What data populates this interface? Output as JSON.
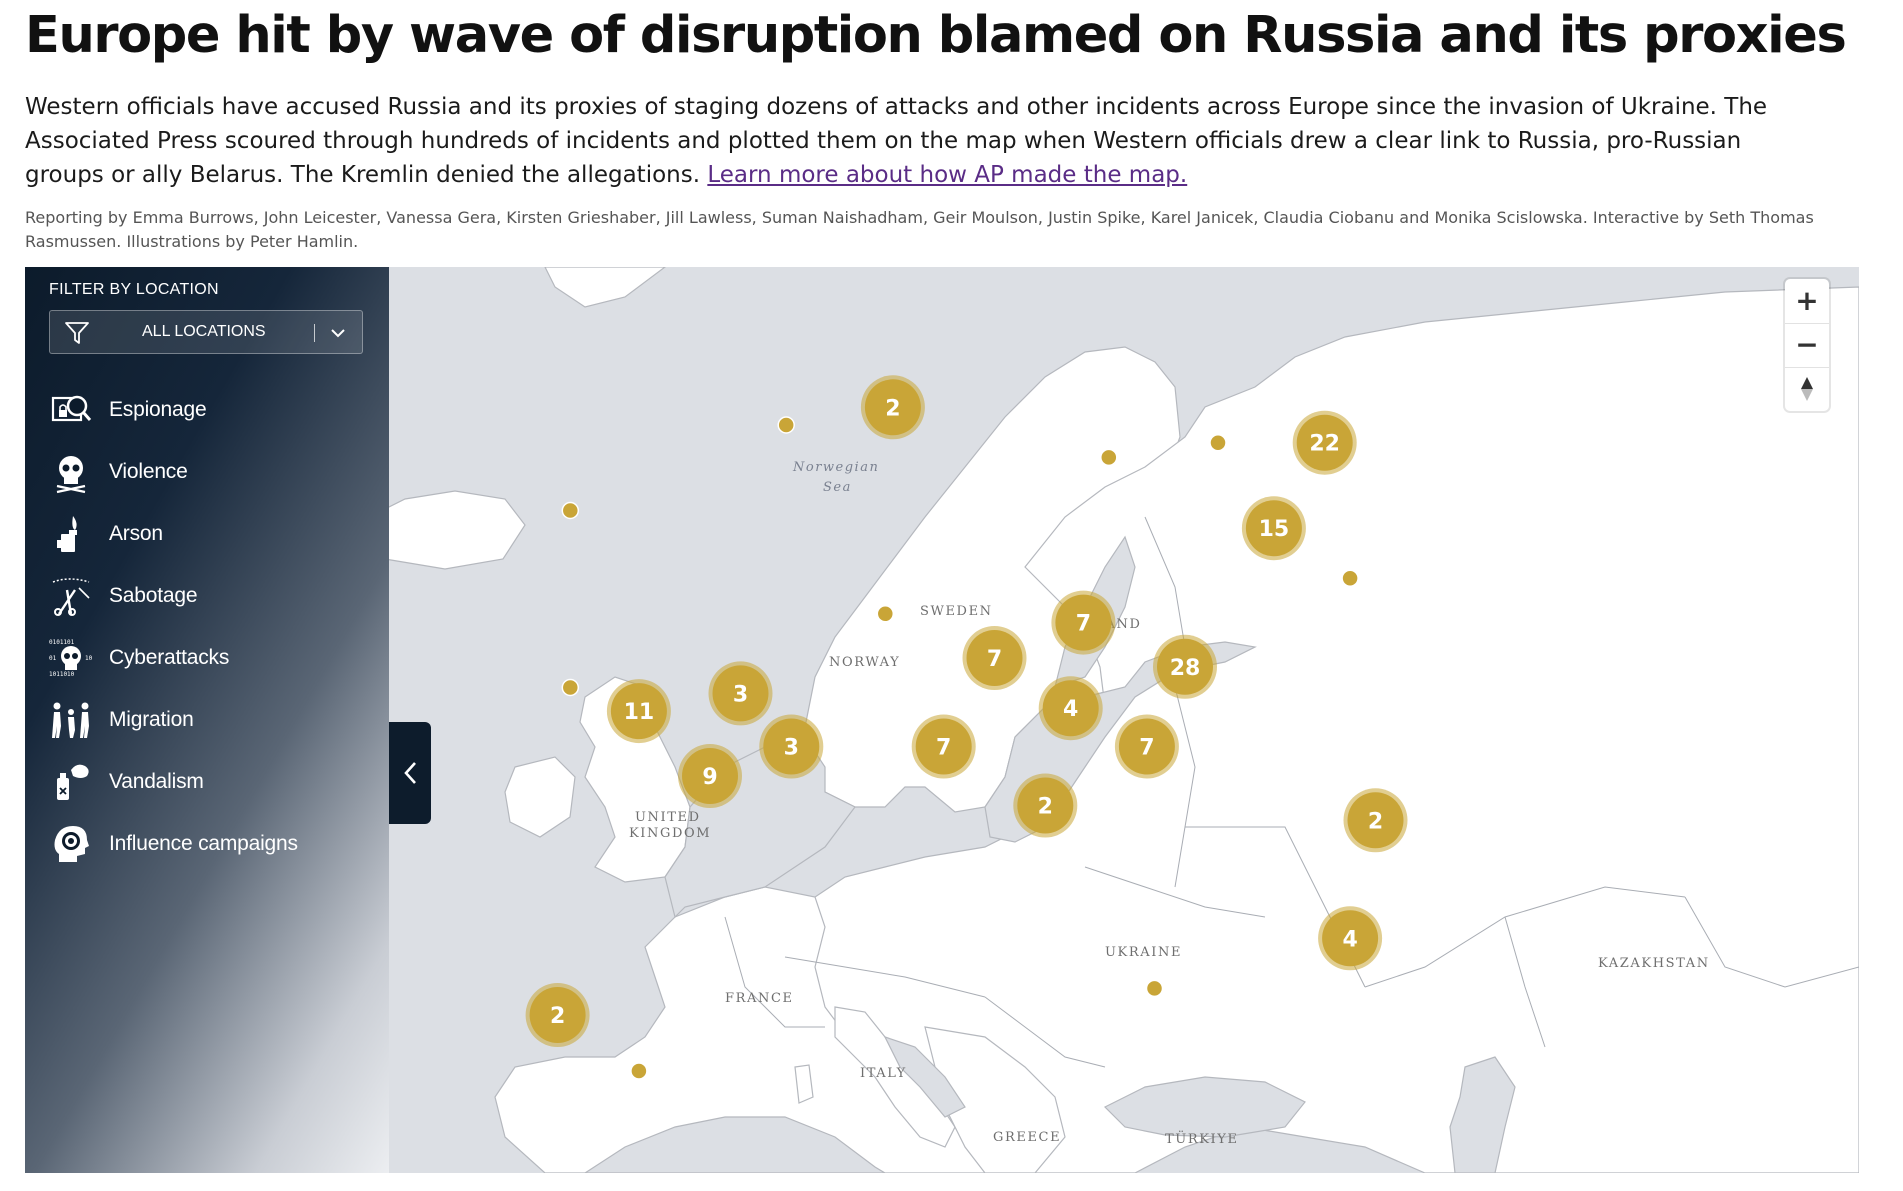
{
  "article": {
    "headline": "Europe hit by wave of disruption blamed on Russia and its proxies",
    "dek": "Western officials have accused Russia and its proxies of staging dozens of attacks and other incidents across Europe since the invasion of Ukraine. The Associated Press scoured through hundreds of incidents and plotted them on the map when Western officials drew a clear link to Russia, pro-Russian groups or ally Belarus. The Kremlin denied the allegations.",
    "dek_link": "Learn more about how AP made the map.",
    "credits": "Reporting by Emma Burrows, John Leicester, Vanessa Gera, Kirsten Grieshaber, Jill Lawless, Suman Naishadham, Geir Moulson, Justin Spike, Karel Janicek, Claudia Ciobanu and Monika Scislowska. Interactive by Seth Thomas Rasmussen. Illustrations by Peter Hamlin."
  },
  "sidebar": {
    "filter_title": "FILTER BY LOCATION",
    "filter_value": "ALL LOCATIONS",
    "categories": [
      {
        "label": "Espionage",
        "icon": "espionage-icon"
      },
      {
        "label": "Violence",
        "icon": "skull-icon"
      },
      {
        "label": "Arson",
        "icon": "lighter-flame-icon"
      },
      {
        "label": "Sabotage",
        "icon": "wire-cutter-icon"
      },
      {
        "label": "Cyberattacks",
        "icon": "binary-skull-icon"
      },
      {
        "label": "Migration",
        "icon": "people-walking-icon"
      },
      {
        "label": "Vandalism",
        "icon": "spray-can-icon"
      },
      {
        "label": "Influence campaigns",
        "icon": "head-target-icon"
      }
    ]
  },
  "map": {
    "labels": {
      "sea": [
        "Norwegian",
        "Sea"
      ],
      "sweden": "SWEDEN",
      "finland": "FINLAND",
      "norway": "NORWAY",
      "uk": [
        "UNITED",
        "KINGDOM"
      ],
      "france": "FRANCE",
      "ukraine": "UKRAINE",
      "italy": "ITALY",
      "greece": "GREECE",
      "turkiye": "TÜRKIYE",
      "kazakhstan": "KAZAKHSTAN"
    },
    "clusters": [
      {
        "count": "2",
        "lon": 9.5,
        "lat": 61.0
      },
      {
        "count": "22",
        "lon": 26.5,
        "lat": 59.8
      },
      {
        "count": "15",
        "lon": 24.5,
        "lat": 56.9
      },
      {
        "count": "7",
        "lon": 17.0,
        "lat": 53.7
      },
      {
        "count": "28",
        "lon": 21.0,
        "lat": 52.2
      },
      {
        "count": "7",
        "lon": 13.5,
        "lat": 52.5
      },
      {
        "count": "4",
        "lon": 16.5,
        "lat": 50.8
      },
      {
        "count": "3",
        "lon": 3.5,
        "lat": 51.3
      },
      {
        "count": "3",
        "lon": 5.5,
        "lat": 49.5
      },
      {
        "count": "11",
        "lon": -0.5,
        "lat": 50.7
      },
      {
        "count": "7",
        "lon": 19.5,
        "lat": 49.5
      },
      {
        "count": "7",
        "lon": 11.5,
        "lat": 49.5
      },
      {
        "count": "9",
        "lon": 2.3,
        "lat": 48.5
      },
      {
        "count": "2",
        "lon": 15.5,
        "lat": 47.5
      },
      {
        "count": "2",
        "lon": 28.5,
        "lat": 47.0
      },
      {
        "count": "4",
        "lon": 27.5,
        "lat": 43.0
      },
      {
        "count": "2",
        "lon": -3.7,
        "lat": 40.4
      }
    ],
    "points": [
      {
        "lon": -21.9,
        "lat": 64.1
      },
      {
        "lon": 5.3,
        "lat": 60.4
      },
      {
        "lon": -3.2,
        "lat": 57.5
      },
      {
        "lon": 18.0,
        "lat": 59.3
      },
      {
        "lon": 22.3,
        "lat": 59.8
      },
      {
        "lon": 27.5,
        "lat": 55.2
      },
      {
        "lon": 9.2,
        "lat": 54.0
      },
      {
        "lon": -3.2,
        "lat": 51.5
      },
      {
        "lon": 19.8,
        "lat": 41.3
      },
      {
        "lon": -0.5,
        "lat": 38.5
      }
    ],
    "cluster_color": "#c9a537"
  },
  "controls": {
    "zoom_in": "+",
    "zoom_out": "−"
  }
}
